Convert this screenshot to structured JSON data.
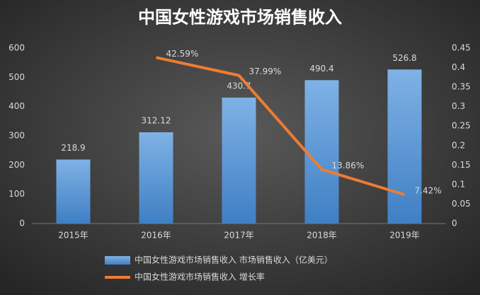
{
  "chart_data": {
    "type": "bar-line",
    "title": "中国女性游戏市场销售收入",
    "categories": [
      "2015年",
      "2016年",
      "2017年",
      "2018年",
      "2019年"
    ],
    "series": [
      {
        "name": "中国女性游戏市场销售收入 市场销售收入（亿美元）",
        "type": "bar",
        "color": "#5b9bd5",
        "values": [
          218.9,
          312.12,
          430.7,
          490.4,
          526.8
        ]
      },
      {
        "name": "中国女性游戏市场销售收入 增长率",
        "type": "line",
        "axis": "y2",
        "color": "#ed7d31",
        "values": [
          null,
          0.4259,
          0.3799,
          0.1386,
          0.0742
        ],
        "value_labels": [
          null,
          "42.59%",
          "37.99%",
          "13.86%",
          "7.42%"
        ]
      }
    ],
    "ylim": [
      0,
      600
    ],
    "yticks": [
      0,
      100,
      200,
      300,
      400,
      500,
      600
    ],
    "y2lim": [
      0,
      0.45
    ],
    "y2ticks": [
      0,
      0.05,
      0.1,
      0.15,
      0.2,
      0.25,
      0.3,
      0.35,
      0.4,
      0.45
    ],
    "grid": false,
    "legend": "bottom"
  }
}
